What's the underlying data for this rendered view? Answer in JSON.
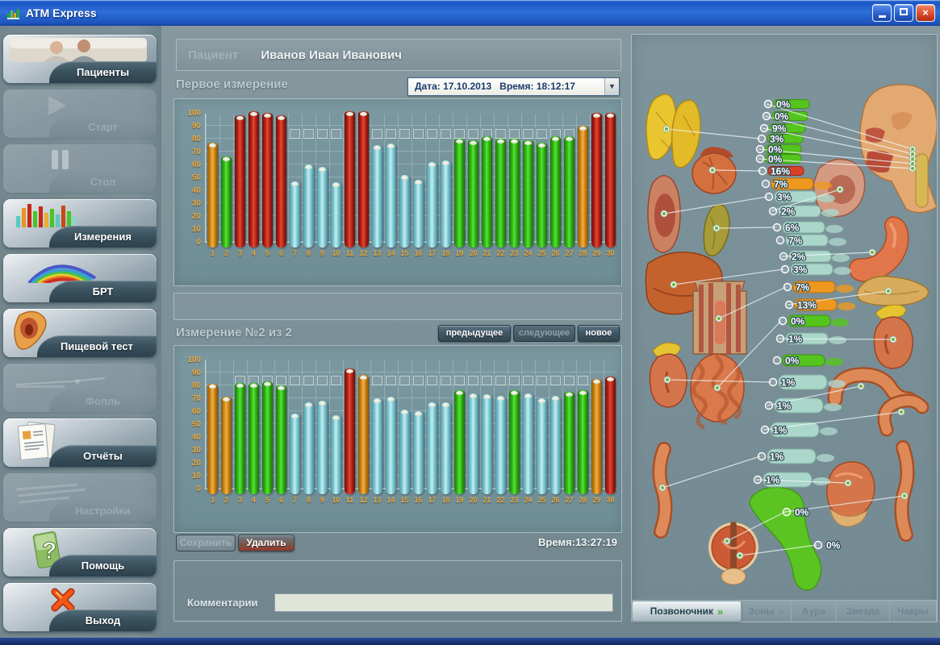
{
  "window": {
    "title": "ATM Express"
  },
  "patient": {
    "label": "Пациент",
    "name": "Иванов Иван Иванович"
  },
  "sidebar": {
    "items": [
      {
        "label": "Пациенты",
        "enabled": true,
        "icon": "patients-photo-icon"
      },
      {
        "label": "Старт",
        "enabled": false,
        "icon": "play-icon"
      },
      {
        "label": "Стоп",
        "enabled": false,
        "icon": "pause-icon"
      },
      {
        "label": "Измерения",
        "enabled": true,
        "icon": "bar-chart-icon"
      },
      {
        "label": "БРТ",
        "enabled": true,
        "icon": "rainbow-icon"
      },
      {
        "label": "Пищевой тест",
        "enabled": true,
        "icon": "throat-icon"
      },
      {
        "label": "Фолль",
        "enabled": false,
        "icon": "probe-icon"
      },
      {
        "label": "Отчёты",
        "enabled": true,
        "icon": "documents-icon"
      },
      {
        "label": "Настройки",
        "enabled": false,
        "icon": "settings-icon"
      },
      {
        "label": "Помощь",
        "enabled": true,
        "icon": "question-icon"
      },
      {
        "label": "Выход",
        "enabled": true,
        "icon": "exit-cross-icon"
      }
    ]
  },
  "controls": {
    "previous": "предыдущее",
    "next": "следующее",
    "new": "новое",
    "save": "Сохранить",
    "delete": "Удалить"
  },
  "actions": {
    "time_label": "Время:13:27:19"
  },
  "comments": {
    "label": "Комментарии",
    "value": ""
  },
  "right_panel": {
    "tabs": [
      {
        "label": "Позвоночник",
        "enabled": true,
        "active": true
      },
      {
        "label": "Зоны",
        "enabled": false,
        "active": false
      },
      {
        "label": "Аура",
        "enabled": false,
        "active": false
      },
      {
        "label": "Звезда",
        "enabled": false,
        "active": false
      },
      {
        "label": "Чакры",
        "enabled": false,
        "active": false
      }
    ],
    "spine_labels": [
      {
        "segment": "C1",
        "value": "0%",
        "color": "green"
      },
      {
        "segment": "C2",
        "value": "0%",
        "color": "green"
      },
      {
        "segment": "C3",
        "value": "9%",
        "color": "green"
      },
      {
        "segment": "C4",
        "value": "3%",
        "color": "green"
      },
      {
        "segment": "C5",
        "value": "0%",
        "color": "green"
      },
      {
        "segment": "C6",
        "value": "0%",
        "color": "green"
      },
      {
        "segment": "C7",
        "value": "16%",
        "color": "red"
      },
      {
        "segment": "T1",
        "value": "7%",
        "color": "orange"
      },
      {
        "segment": "T2",
        "value": "3%",
        "color": "teal"
      },
      {
        "segment": "T3",
        "value": "2%",
        "color": "teal"
      },
      {
        "segment": "T4",
        "value": "6%",
        "color": "teal"
      },
      {
        "segment": "T5",
        "value": "7%",
        "color": "teal"
      },
      {
        "segment": "T6",
        "value": "2%",
        "color": "teal"
      },
      {
        "segment": "T7",
        "value": "3%",
        "color": "teal"
      },
      {
        "segment": "T8",
        "value": "7%",
        "color": "orange"
      },
      {
        "segment": "T9",
        "value": "13%",
        "color": "orange"
      },
      {
        "segment": "T10",
        "value": "0%",
        "color": "green"
      },
      {
        "segment": "T11",
        "value": "1%",
        "color": "teal"
      },
      {
        "segment": "T12",
        "value": "0%",
        "color": "green"
      },
      {
        "segment": "L1",
        "value": "1%",
        "color": "teal"
      },
      {
        "segment": "L2",
        "value": "1%",
        "color": "teal"
      },
      {
        "segment": "L3",
        "value": "1%",
        "color": "teal"
      },
      {
        "segment": "L4",
        "value": "1%",
        "color": "teal"
      },
      {
        "segment": "L5",
        "value": "1%",
        "color": "teal"
      },
      {
        "segment": "Sacrum",
        "value": "0%",
        "color": "green"
      },
      {
        "segment": "Coccyx",
        "value": "0%",
        "color": "green"
      }
    ]
  },
  "colors": {
    "titlebar_blue": "#2e6fd8",
    "background": "#7b9097",
    "axis_labels": "#eca93b",
    "bar_red": "#c42518",
    "bar_orange": "#e89422",
    "bar_green": "#3cc41e",
    "bar_teal": "#8fd2d8"
  },
  "chart_data": [
    {
      "type": "bar",
      "title": "Первое измерение",
      "datetime": "Дата: 17.10.2013   Время: 18:12:17",
      "categories": [
        1,
        2,
        3,
        4,
        5,
        6,
        7,
        8,
        9,
        10,
        11,
        12,
        13,
        14,
        15,
        16,
        17,
        18,
        19,
        20,
        21,
        22,
        23,
        24,
        25,
        26,
        27,
        28,
        29,
        30
      ],
      "values": [
        77,
        66,
        98,
        101,
        100,
        98,
        47,
        60,
        58,
        46,
        101,
        101,
        75,
        76,
        52,
        48,
        62,
        63,
        80,
        79,
        82,
        80,
        80,
        79,
        77,
        82,
        82,
        90,
        100,
        100
      ],
      "bar_colors": [
        "orange",
        "green",
        "red",
        "red",
        "red",
        "red",
        "teal",
        "teal",
        "teal",
        "teal",
        "red",
        "red",
        "teal",
        "teal",
        "teal",
        "teal",
        "teal",
        "teal",
        "green",
        "green",
        "green",
        "green",
        "green",
        "green",
        "green",
        "green",
        "green",
        "orange",
        "red",
        "red"
      ],
      "xlabel": "",
      "ylabel": "",
      "ylim": [
        0,
        100
      ],
      "yticks": [
        0,
        10,
        20,
        30,
        40,
        50,
        60,
        70,
        80,
        90,
        100
      ],
      "grid": true,
      "legend": false,
      "norm_band": [
        80,
        88
      ],
      "norm_columns": [
        7,
        8,
        9,
        10,
        11,
        12,
        13,
        14,
        15,
        16,
        17,
        18,
        19,
        20,
        21,
        22,
        23,
        24,
        25,
        26,
        27
      ]
    },
    {
      "type": "bar",
      "title": "Измерение №2 из 2",
      "time": "13:27:19",
      "categories": [
        1,
        2,
        3,
        4,
        5,
        6,
        7,
        8,
        9,
        10,
        11,
        12,
        13,
        14,
        15,
        16,
        17,
        18,
        19,
        20,
        21,
        22,
        23,
        24,
        25,
        26,
        27,
        28,
        29,
        30
      ],
      "values": [
        81,
        71,
        82,
        82,
        83,
        80,
        58,
        67,
        68,
        57,
        93,
        88,
        70,
        71,
        61,
        60,
        67,
        67,
        76,
        74,
        73,
        72,
        76,
        74,
        70,
        72,
        75,
        76,
        85,
        87
      ],
      "bar_colors": [
        "orange",
        "orange",
        "green",
        "green",
        "green",
        "green",
        "teal",
        "teal",
        "teal",
        "teal",
        "red",
        "orange",
        "teal",
        "teal",
        "teal",
        "teal",
        "teal",
        "teal",
        "green",
        "teal",
        "teal",
        "teal",
        "green",
        "teal",
        "teal",
        "teal",
        "green",
        "green",
        "orange",
        "red"
      ],
      "xlabel": "",
      "ylabel": "",
      "ylim": [
        0,
        100
      ],
      "yticks": [
        0,
        10,
        20,
        30,
        40,
        50,
        60,
        70,
        80,
        90,
        100
      ],
      "grid": true,
      "legend": false,
      "norm_band": [
        80,
        88
      ],
      "norm_columns": [
        3,
        4,
        5,
        6,
        7,
        8,
        9,
        10,
        11,
        12,
        13,
        14,
        15,
        16,
        17,
        18,
        19,
        20,
        21,
        22,
        23,
        24,
        25,
        26,
        27,
        28
      ]
    }
  ]
}
